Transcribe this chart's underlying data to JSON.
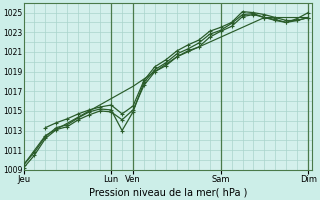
{
  "xlabel": "Pression niveau de la mer( hPa )",
  "background_color": "#cceee8",
  "plot_bg": "#d4f0ec",
  "grid_color": "#aad4cc",
  "line_color": "#2a5c2a",
  "vline_color": "#4a7a4a",
  "ylim": [
    1009,
    1026
  ],
  "yticks": [
    1009,
    1011,
    1013,
    1015,
    1017,
    1019,
    1021,
    1023,
    1025
  ],
  "xlim": [
    0,
    316
  ],
  "day_labels": [
    "Jeu",
    "Lun",
    "Ven",
    "Sam",
    "Dim"
  ],
  "day_positions": [
    0,
    96,
    120,
    216,
    312
  ],
  "series": [
    {
      "x": [
        0,
        12,
        24,
        36,
        48,
        60,
        72,
        84,
        96,
        108,
        120,
        132,
        144,
        156,
        168,
        180,
        192,
        204,
        216,
        228,
        240,
        252,
        264,
        276,
        288,
        300,
        312
      ],
      "y": [
        1009.2,
        1010.5,
        1012.2,
        1013.1,
        1013.4,
        1014.1,
        1014.6,
        1015.0,
        1014.9,
        1014.1,
        1015.1,
        1017.6,
        1019.0,
        1019.6,
        1020.5,
        1021.1,
        1021.5,
        1022.5,
        1023.1,
        1023.6,
        1024.6,
        1024.8,
        1024.5,
        1024.3,
        1024.0,
        1024.4,
        1025.0
      ],
      "marker": "+",
      "lw": 0.9
    },
    {
      "x": [
        0,
        12,
        24,
        36,
        48,
        60,
        72,
        84,
        96,
        108,
        120,
        132,
        144,
        156,
        168,
        180,
        192,
        204,
        216,
        228,
        240,
        252,
        264,
        276,
        288,
        300,
        312
      ],
      "y": [
        1009.5,
        1010.8,
        1012.4,
        1013.3,
        1013.6,
        1014.3,
        1014.9,
        1015.2,
        1015.1,
        1013.0,
        1014.9,
        1017.9,
        1019.2,
        1019.9,
        1020.8,
        1021.3,
        1021.9,
        1022.8,
        1023.2,
        1023.9,
        1024.8,
        1024.9,
        1024.5,
        1024.2,
        1024.0,
        1024.2,
        1024.5
      ],
      "marker": "+",
      "lw": 0.9
    },
    {
      "x": [
        24,
        36,
        48,
        60,
        72,
        84,
        96,
        108,
        120,
        132,
        144,
        156,
        168,
        180,
        192,
        204,
        216,
        228,
        240,
        252,
        264,
        276,
        288,
        300,
        312
      ],
      "y": [
        1013.3,
        1013.8,
        1014.2,
        1014.7,
        1015.1,
        1015.4,
        1015.6,
        1014.7,
        1015.5,
        1018.1,
        1019.5,
        1020.2,
        1021.1,
        1021.7,
        1022.2,
        1023.1,
        1023.5,
        1024.0,
        1025.1,
        1025.0,
        1024.8,
        1024.5,
        1024.2,
        1024.2,
        1024.5
      ],
      "marker": "+",
      "lw": 0.9
    },
    {
      "x": [
        0,
        24,
        72,
        120,
        168,
        216,
        264,
        312
      ],
      "y": [
        1009.5,
        1012.5,
        1015.0,
        1017.5,
        1020.5,
        1022.5,
        1024.5,
        1024.5
      ],
      "marker": null,
      "lw": 0.85
    }
  ]
}
